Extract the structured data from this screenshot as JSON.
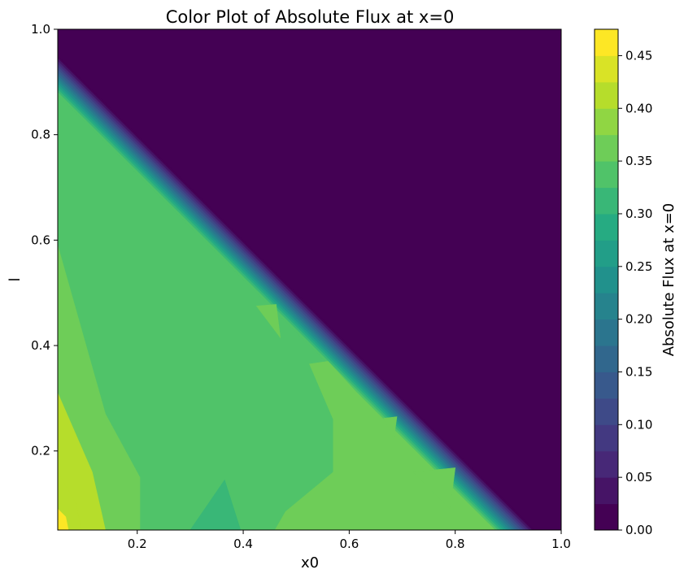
{
  "chart_data": {
    "type": "heatmap",
    "subtype": "filled-contour",
    "title": "Color Plot of Absolute Flux at x=0",
    "xlabel": "x0",
    "ylabel": "l",
    "xlim": [
      0.05,
      1.0
    ],
    "ylim": [
      0.05,
      1.0
    ],
    "x_ticks": [
      0.2,
      0.4,
      0.6,
      0.8,
      1.0
    ],
    "x_tick_labels": [
      "0.2",
      "0.4",
      "0.6",
      "0.8",
      "1.0"
    ],
    "y_ticks": [
      0.2,
      0.4,
      0.6,
      0.8,
      1.0
    ],
    "y_tick_labels": [
      "0.2",
      "0.4",
      "0.6",
      "0.8",
      "1.0"
    ],
    "colormap": "viridis",
    "grid": false,
    "colorbar": {
      "label": "Absolute Flux at x=0",
      "min": 0.0,
      "max": 0.475,
      "level_step": 0.025,
      "ticks": [
        0.0,
        0.05,
        0.1,
        0.15,
        0.2,
        0.25,
        0.3,
        0.35,
        0.4,
        0.45
      ],
      "tick_labels": [
        "0.00",
        "0.05",
        "0.10",
        "0.15",
        "0.20",
        "0.25",
        "0.30",
        "0.35",
        "0.40",
        "0.45"
      ]
    },
    "regions": [
      {
        "description": "zero-flux region above the diagonal x0 + l = 1",
        "value": 0.0
      },
      {
        "description": "transition band along the diagonal",
        "value_range": [
          0.0,
          0.35
        ]
      },
      {
        "description": "main region below the diagonal",
        "value": 0.34
      },
      {
        "description": "band near the left edge and along the diagonal",
        "value": 0.37
      },
      {
        "description": "bottom-left corner",
        "value": 0.45
      },
      {
        "description": "patch near x0 = 0.36, l = 0.1",
        "value": 0.31
      }
    ]
  }
}
